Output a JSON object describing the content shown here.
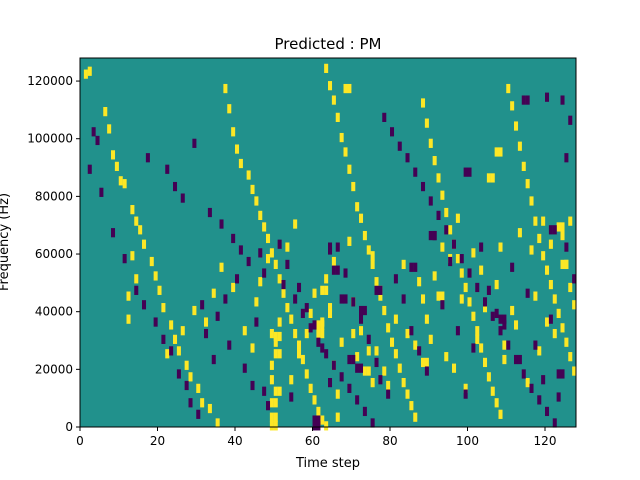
{
  "chart_data": {
    "type": "heatmap",
    "title": "Predicted : PM",
    "xlabel": "Time step",
    "ylabel": "Frequency (Hz)",
    "xlim": [
      0,
      128
    ],
    "ylim": [
      0,
      128000
    ],
    "xticks": [
      0,
      20,
      40,
      60,
      80,
      100,
      120
    ],
    "xtick_labels": [
      "0",
      "20",
      "40",
      "60",
      "80",
      "100",
      "120"
    ],
    "yticks": [
      0,
      20000,
      40000,
      60000,
      80000,
      100000,
      120000
    ],
    "ytick_labels": [
      "0",
      "20000",
      "40000",
      "60000",
      "80000",
      "100000",
      "120000"
    ],
    "grid": false,
    "legend": "none",
    "colors": {
      "background": "#21918c",
      "positive": "#fde725",
      "negative": "#440154"
    },
    "n_rows": 128,
    "row_height_hz": 1000,
    "positive_cells": [
      [
        1,
        123
      ],
      [
        2,
        124
      ],
      [
        6,
        110
      ],
      [
        7,
        104
      ],
      [
        8,
        95
      ],
      [
        9,
        91
      ],
      [
        10,
        86
      ],
      [
        11,
        85
      ],
      [
        13,
        76
      ],
      [
        14,
        72
      ],
      [
        15,
        69
      ],
      [
        16,
        64
      ],
      [
        18,
        58
      ],
      [
        19,
        53
      ],
      [
        20,
        48
      ],
      [
        21,
        42
      ],
      [
        23,
        36
      ],
      [
        24,
        31
      ],
      [
        25,
        27
      ],
      [
        27,
        22
      ],
      [
        28,
        18
      ],
      [
        30,
        14
      ],
      [
        31,
        9
      ],
      [
        33,
        7
      ],
      [
        35,
        2
      ],
      [
        37,
        118
      ],
      [
        38,
        111
      ],
      [
        39,
        103
      ],
      [
        40,
        97
      ],
      [
        41,
        92
      ],
      [
        43,
        88
      ],
      [
        44,
        83
      ],
      [
        45,
        79
      ],
      [
        46,
        74
      ],
      [
        47,
        70
      ],
      [
        48,
        66
      ],
      [
        49,
        61
      ],
      [
        50,
        57
      ],
      [
        51,
        52
      ],
      [
        52,
        47
      ],
      [
        53,
        42
      ],
      [
        54,
        38
      ],
      [
        55,
        33
      ],
      [
        56,
        29
      ],
      [
        57,
        24
      ],
      [
        58,
        19
      ],
      [
        59,
        14
      ],
      [
        60,
        10
      ],
      [
        61,
        6
      ],
      [
        62,
        3
      ],
      [
        63,
        125
      ],
      [
        64,
        119
      ],
      [
        65,
        114
      ],
      [
        66,
        108
      ],
      [
        67,
        101
      ],
      [
        68,
        96
      ],
      [
        69,
        90
      ],
      [
        70,
        84
      ],
      [
        71,
        77
      ],
      [
        72,
        73
      ],
      [
        73,
        67
      ],
      [
        74,
        62
      ],
      [
        75,
        57
      ],
      [
        76,
        51
      ],
      [
        77,
        46
      ],
      [
        78,
        41
      ],
      [
        79,
        35
      ],
      [
        80,
        30
      ],
      [
        81,
        26
      ],
      [
        82,
        21
      ],
      [
        83,
        16
      ],
      [
        84,
        12
      ],
      [
        85,
        8
      ],
      [
        86,
        4
      ],
      [
        88,
        113
      ],
      [
        89,
        106
      ],
      [
        90,
        99
      ],
      [
        91,
        93
      ],
      [
        92,
        87
      ],
      [
        93,
        81
      ],
      [
        94,
        75
      ],
      [
        95,
        69
      ],
      [
        96,
        64
      ],
      [
        97,
        59
      ],
      [
        98,
        54
      ],
      [
        99,
        49
      ],
      [
        100,
        44
      ],
      [
        101,
        39
      ],
      [
        102,
        34
      ],
      [
        103,
        28
      ],
      [
        104,
        23
      ],
      [
        105,
        18
      ],
      [
        106,
        13
      ],
      [
        107,
        9
      ],
      [
        108,
        5
      ],
      [
        110,
        118
      ],
      [
        111,
        112
      ],
      [
        112,
        105
      ],
      [
        113,
        98
      ],
      [
        114,
        91
      ],
      [
        115,
        85
      ],
      [
        116,
        79
      ],
      [
        117,
        72
      ],
      [
        118,
        66
      ],
      [
        119,
        60
      ],
      [
        120,
        55
      ],
      [
        121,
        50
      ],
      [
        122,
        45
      ],
      [
        123,
        40
      ],
      [
        124,
        35
      ],
      [
        125,
        30
      ],
      [
        126,
        25
      ],
      [
        127,
        20
      ],
      [
        12,
        38
      ],
      [
        12,
        46
      ],
      [
        13,
        60
      ],
      [
        14,
        52
      ],
      [
        22,
        26
      ],
      [
        26,
        34
      ],
      [
        29,
        41
      ],
      [
        32,
        37
      ],
      [
        34,
        47
      ],
      [
        36,
        56
      ],
      [
        39,
        49
      ],
      [
        42,
        34
      ],
      [
        44,
        28
      ],
      [
        45,
        44
      ],
      [
        46,
        51
      ],
      [
        48,
        59
      ],
      [
        49,
        22
      ],
      [
        50,
        30
      ],
      [
        51,
        37
      ],
      [
        53,
        63
      ],
      [
        54,
        17
      ],
      [
        55,
        71
      ],
      [
        56,
        26
      ],
      [
        58,
        33
      ],
      [
        59,
        40
      ],
      [
        60,
        47
      ],
      [
        62,
        37
      ],
      [
        63,
        52
      ],
      [
        64,
        42
      ],
      [
        65,
        22
      ],
      [
        66,
        12
      ],
      [
        67,
        30
      ],
      [
        69,
        65
      ],
      [
        70,
        44
      ],
      [
        72,
        34
      ],
      [
        74,
        27
      ],
      [
        75,
        60
      ],
      [
        77,
        48
      ],
      [
        78,
        20
      ],
      [
        79,
        15
      ],
      [
        81,
        38
      ],
      [
        83,
        57
      ],
      [
        84,
        33
      ],
      [
        86,
        29
      ],
      [
        87,
        51
      ],
      [
        88,
        45
      ],
      [
        89,
        38
      ],
      [
        90,
        31
      ],
      [
        91,
        53
      ],
      [
        93,
        63
      ],
      [
        94,
        25
      ],
      [
        95,
        59
      ],
      [
        96,
        21
      ],
      [
        97,
        73
      ],
      [
        98,
        45
      ],
      [
        99,
        14
      ],
      [
        101,
        61
      ],
      [
        102,
        31
      ],
      [
        103,
        55
      ],
      [
        104,
        42
      ],
      [
        106,
        87
      ],
      [
        107,
        50
      ],
      [
        108,
        63
      ],
      [
        109,
        24
      ],
      [
        111,
        41
      ],
      [
        112,
        36
      ],
      [
        113,
        68
      ],
      [
        115,
        16
      ],
      [
        116,
        62
      ],
      [
        117,
        46
      ],
      [
        118,
        27
      ],
      [
        119,
        72
      ],
      [
        120,
        37
      ],
      [
        121,
        64
      ],
      [
        122,
        33
      ],
      [
        124,
        67
      ],
      [
        125,
        57
      ],
      [
        126,
        49
      ],
      [
        127,
        43
      ],
      [
        49,
        1
      ],
      [
        49,
        4
      ],
      [
        49,
        9
      ],
      [
        49,
        17
      ],
      [
        49,
        33
      ],
      [
        50,
        1
      ],
      [
        50,
        4
      ],
      [
        50,
        9
      ],
      [
        50,
        13
      ],
      [
        50,
        26
      ],
      [
        50,
        32
      ],
      [
        51,
        13
      ],
      [
        51,
        26
      ],
      [
        51,
        32
      ],
      [
        61,
        2
      ],
      [
        61,
        33
      ],
      [
        61,
        36
      ],
      [
        62,
        33
      ],
      [
        62,
        36
      ],
      [
        62,
        48
      ],
      [
        63,
        1
      ],
      [
        63,
        48
      ],
      [
        64,
        40
      ],
      [
        65,
        58
      ],
      [
        66,
        4
      ],
      [
        68,
        118
      ],
      [
        69,
        118
      ],
      [
        70,
        33
      ],
      [
        71,
        25
      ],
      [
        73,
        20
      ],
      [
        74,
        20
      ],
      [
        75,
        16
      ],
      [
        76,
        27
      ],
      [
        88,
        23
      ],
      [
        89,
        23
      ],
      [
        92,
        46
      ],
      [
        93,
        46
      ],
      [
        105,
        87
      ],
      [
        107,
        96
      ],
      [
        108,
        96
      ],
      [
        109,
        29
      ],
      [
        123,
        70
      ],
      [
        124,
        70
      ],
      [
        124,
        57
      ],
      [
        125,
        57
      ],
      [
        126,
        72
      ]
    ],
    "negative_cells": [
      [
        3,
        103
      ],
      [
        4,
        100
      ],
      [
        17,
        94
      ],
      [
        22,
        90
      ],
      [
        24,
        84
      ],
      [
        26,
        80
      ],
      [
        29,
        99
      ],
      [
        33,
        75
      ],
      [
        36,
        71
      ],
      [
        39,
        66
      ],
      [
        41,
        62
      ],
      [
        43,
        58
      ],
      [
        47,
        54
      ],
      [
        52,
        50
      ],
      [
        55,
        45
      ],
      [
        57,
        40
      ],
      [
        59,
        35
      ],
      [
        61,
        30
      ],
      [
        63,
        26
      ],
      [
        65,
        22
      ],
      [
        67,
        18
      ],
      [
        69,
        14
      ],
      [
        71,
        10
      ],
      [
        73,
        6
      ],
      [
        75,
        2
      ],
      [
        78,
        108
      ],
      [
        80,
        103
      ],
      [
        82,
        98
      ],
      [
        84,
        94
      ],
      [
        86,
        89
      ],
      [
        88,
        84
      ],
      [
        90,
        79
      ],
      [
        92,
        74
      ],
      [
        94,
        69
      ],
      [
        96,
        64
      ],
      [
        98,
        59
      ],
      [
        100,
        54
      ],
      [
        102,
        49
      ],
      [
        104,
        44
      ],
      [
        106,
        39
      ],
      [
        108,
        34
      ],
      [
        110,
        29
      ],
      [
        112,
        24
      ],
      [
        114,
        19
      ],
      [
        116,
        14
      ],
      [
        118,
        10
      ],
      [
        120,
        6
      ],
      [
        122,
        2
      ],
      [
        124,
        114
      ],
      [
        126,
        107
      ],
      [
        2,
        90
      ],
      [
        5,
        82
      ],
      [
        8,
        68
      ],
      [
        11,
        59
      ],
      [
        14,
        48
      ],
      [
        16,
        43
      ],
      [
        19,
        37
      ],
      [
        21,
        31
      ],
      [
        23,
        27
      ],
      [
        25,
        19
      ],
      [
        27,
        15
      ],
      [
        28,
        9
      ],
      [
        30,
        5
      ],
      [
        31,
        43
      ],
      [
        32,
        33
      ],
      [
        34,
        24
      ],
      [
        35,
        39
      ],
      [
        37,
        45
      ],
      [
        38,
        29
      ],
      [
        40,
        52
      ],
      [
        42,
        21
      ],
      [
        44,
        15
      ],
      [
        45,
        37
      ],
      [
        46,
        61
      ],
      [
        47,
        13
      ],
      [
        48,
        8
      ],
      [
        51,
        64
      ],
      [
        53,
        57
      ],
      [
        54,
        11
      ],
      [
        56,
        49
      ],
      [
        58,
        42
      ],
      [
        60,
        36
      ],
      [
        62,
        28
      ],
      [
        64,
        16
      ],
      [
        66,
        63
      ],
      [
        68,
        54
      ],
      [
        70,
        44
      ],
      [
        72,
        38
      ],
      [
        74,
        31
      ],
      [
        76,
        23
      ],
      [
        77,
        17
      ],
      [
        79,
        12
      ],
      [
        81,
        52
      ],
      [
        83,
        45
      ],
      [
        85,
        34
      ],
      [
        87,
        27
      ],
      [
        89,
        20
      ],
      [
        91,
        67
      ],
      [
        93,
        43
      ],
      [
        95,
        58
      ],
      [
        97,
        34
      ],
      [
        99,
        12
      ],
      [
        101,
        28
      ],
      [
        103,
        63
      ],
      [
        105,
        48
      ],
      [
        107,
        40
      ],
      [
        109,
        36
      ],
      [
        111,
        56
      ],
      [
        113,
        24
      ],
      [
        115,
        47
      ],
      [
        117,
        29
      ],
      [
        119,
        17
      ],
      [
        121,
        38
      ],
      [
        123,
        11
      ],
      [
        125,
        63
      ],
      [
        127,
        52
      ],
      [
        60,
        1
      ],
      [
        60,
        3
      ],
      [
        61,
        1
      ],
      [
        61,
        3
      ],
      [
        64,
        62
      ],
      [
        64,
        63
      ],
      [
        65,
        55
      ],
      [
        66,
        55
      ],
      [
        67,
        45
      ],
      [
        68,
        45
      ],
      [
        69,
        24
      ],
      [
        70,
        24
      ],
      [
        71,
        21
      ],
      [
        72,
        21
      ],
      [
        72,
        41
      ],
      [
        73,
        41
      ],
      [
        76,
        48
      ],
      [
        77,
        48
      ],
      [
        85,
        56
      ],
      [
        86,
        56
      ],
      [
        90,
        67
      ],
      [
        91,
        67
      ],
      [
        99,
        89
      ],
      [
        100,
        89
      ],
      [
        108,
        38
      ],
      [
        109,
        38
      ],
      [
        114,
        114
      ],
      [
        115,
        114
      ],
      [
        120,
        115
      ],
      [
        121,
        69
      ],
      [
        122,
        69
      ],
      [
        123,
        19
      ],
      [
        124,
        19
      ],
      [
        125,
        94
      ]
    ]
  }
}
